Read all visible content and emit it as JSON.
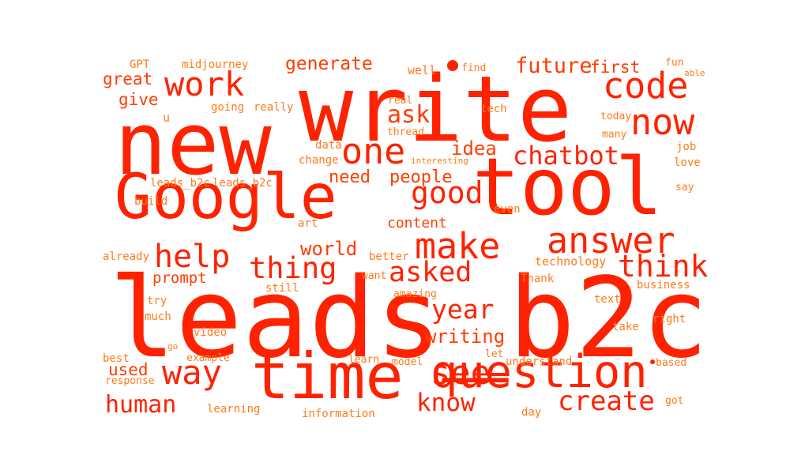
{
  "colors": {
    "strong": "#ff2200",
    "mid": "#ff3d00",
    "light": "#ff7a1a",
    "background": "#ffffff"
  },
  "words": [
    {
      "text": "leads_b2c",
      "tone": "strong"
    },
    {
      "text": "write",
      "tone": "strong"
    },
    {
      "text": "new",
      "tone": "strong"
    },
    {
      "text": "tool",
      "tone": "strong"
    },
    {
      "text": "Google",
      "tone": "strong"
    },
    {
      "text": "time",
      "tone": "strong"
    },
    {
      "text": "question",
      "tone": "strong"
    },
    {
      "text": "answer",
      "tone": "strong"
    },
    {
      "text": "code",
      "tone": "strong"
    },
    {
      "text": "now",
      "tone": "strong"
    },
    {
      "text": "one",
      "tone": "strong"
    },
    {
      "text": "work",
      "tone": "strong"
    },
    {
      "text": "way",
      "tone": "strong"
    },
    {
      "text": "see",
      "tone": "strong"
    },
    {
      "text": "make",
      "tone": "strong"
    },
    {
      "text": "good",
      "tone": "strong"
    },
    {
      "text": "help",
      "tone": "strong"
    },
    {
      "text": "thing",
      "tone": "strong"
    },
    {
      "text": "think",
      "tone": "strong"
    },
    {
      "text": "chatbot",
      "tone": "strong"
    },
    {
      "text": "asked",
      "tone": "strong"
    },
    {
      "text": "create",
      "tone": "strong"
    },
    {
      "text": "human",
      "tone": "strong"
    },
    {
      "text": "know",
      "tone": "strong"
    },
    {
      "text": "year",
      "tone": "strong"
    },
    {
      "text": "future",
      "tone": "mid"
    },
    {
      "text": "generate",
      "tone": "mid"
    },
    {
      "text": "ask",
      "tone": "mid"
    },
    {
      "text": "idea",
      "tone": "mid"
    },
    {
      "text": "writing",
      "tone": "mid"
    },
    {
      "text": "world",
      "tone": "mid"
    },
    {
      "text": "need",
      "tone": "mid"
    },
    {
      "text": "people",
      "tone": "mid"
    },
    {
      "text": "prompt",
      "tone": "mid"
    },
    {
      "text": "great",
      "tone": "mid"
    },
    {
      "text": "give",
      "tone": "mid"
    },
    {
      "text": "first",
      "tone": "mid"
    },
    {
      "text": "used",
      "tone": "mid"
    },
    {
      "text": "content",
      "tone": "mid"
    },
    {
      "text": "GPT",
      "tone": "light"
    },
    {
      "text": "midjourney",
      "tone": "light"
    },
    {
      "text": "well",
      "tone": "light"
    },
    {
      "text": "find",
      "tone": "light"
    },
    {
      "text": "fun",
      "tone": "light"
    },
    {
      "text": "able",
      "tone": "light"
    },
    {
      "text": "u",
      "tone": "light"
    },
    {
      "text": "going",
      "tone": "light"
    },
    {
      "text": "really",
      "tone": "light"
    },
    {
      "text": "real",
      "tone": "light"
    },
    {
      "text": "tech",
      "tone": "light"
    },
    {
      "text": "thread",
      "tone": "light"
    },
    {
      "text": "today",
      "tone": "light"
    },
    {
      "text": "many",
      "tone": "light"
    },
    {
      "text": "data",
      "tone": "light"
    },
    {
      "text": "job",
      "tone": "light"
    },
    {
      "text": "change",
      "tone": "light"
    },
    {
      "text": "interesting",
      "tone": "light"
    },
    {
      "text": "love",
      "tone": "light"
    },
    {
      "text": "leads_b2c",
      "tone": "light"
    },
    {
      "text": "leads_b2c",
      "tone": "light"
    },
    {
      "text": "say",
      "tone": "light"
    },
    {
      "text": "build",
      "tone": "light"
    },
    {
      "text": "even",
      "tone": "light"
    },
    {
      "text": "art",
      "tone": "light"
    },
    {
      "text": "already",
      "tone": "light"
    },
    {
      "text": "better",
      "tone": "light"
    },
    {
      "text": "technology",
      "tone": "light"
    },
    {
      "text": "still",
      "tone": "light"
    },
    {
      "text": "want",
      "tone": "light"
    },
    {
      "text": "Thank",
      "tone": "light"
    },
    {
      "text": "business",
      "tone": "light"
    },
    {
      "text": "try",
      "tone": "light"
    },
    {
      "text": "amazing",
      "tone": "light"
    },
    {
      "text": "text",
      "tone": "light"
    },
    {
      "text": "much",
      "tone": "light"
    },
    {
      "text": "take",
      "tone": "light"
    },
    {
      "text": "right",
      "tone": "light"
    },
    {
      "text": "video",
      "tone": "light"
    },
    {
      "text": "go",
      "tone": "light"
    },
    {
      "text": "let",
      "tone": "light"
    },
    {
      "text": "best",
      "tone": "light"
    },
    {
      "text": "example",
      "tone": "light"
    },
    {
      "text": "learn",
      "tone": "light"
    },
    {
      "text": "model",
      "tone": "light"
    },
    {
      "text": "understand",
      "tone": "light"
    },
    {
      "text": "based",
      "tone": "light"
    },
    {
      "text": "response",
      "tone": "light"
    },
    {
      "text": "got",
      "tone": "light"
    },
    {
      "text": "learning",
      "tone": "light"
    },
    {
      "text": "information",
      "tone": "light"
    },
    {
      "text": "day",
      "tone": "light"
    }
  ]
}
